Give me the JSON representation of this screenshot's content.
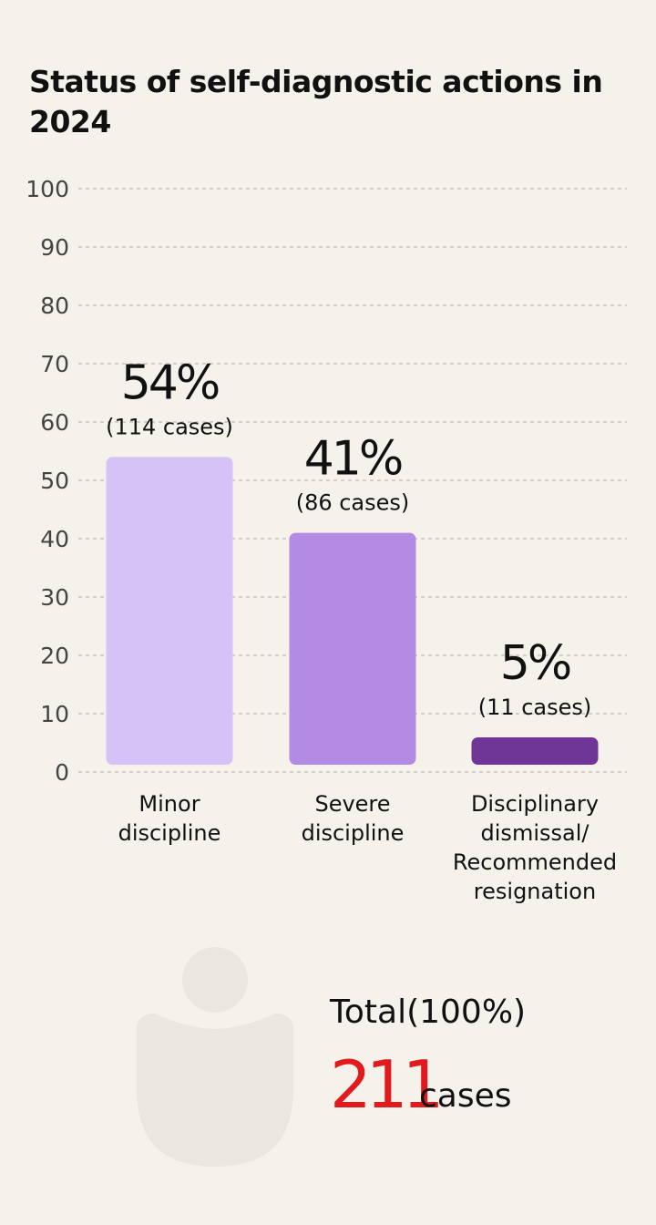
{
  "chart_data": {
    "type": "bar",
    "title": "Status of self-diagnostic actions in 2024",
    "categories": [
      "Minor\ndiscipline",
      "Severe\ndiscipline",
      "Disciplinary\ndismissal/\nRecommended\nresignation"
    ],
    "values": [
      54,
      41,
      5
    ],
    "value_labels": [
      "54%",
      "41%",
      "5%"
    ],
    "case_labels": [
      "(114 cases)",
      "(86 cases)",
      "(11 cases)"
    ],
    "bar_colors": [
      "#d6c2f7",
      "#b48be3",
      "#703697"
    ],
    "ylim": [
      0,
      100
    ],
    "yticks": [
      0,
      10,
      20,
      30,
      40,
      50,
      60,
      70,
      80,
      90,
      100
    ],
    "grid": true,
    "xlabel": "",
    "ylabel": ""
  },
  "total": {
    "label": "Total(100%)",
    "value": "211",
    "unit": "cases",
    "value_color": "#e2191d",
    "icon": "person-icon"
  }
}
